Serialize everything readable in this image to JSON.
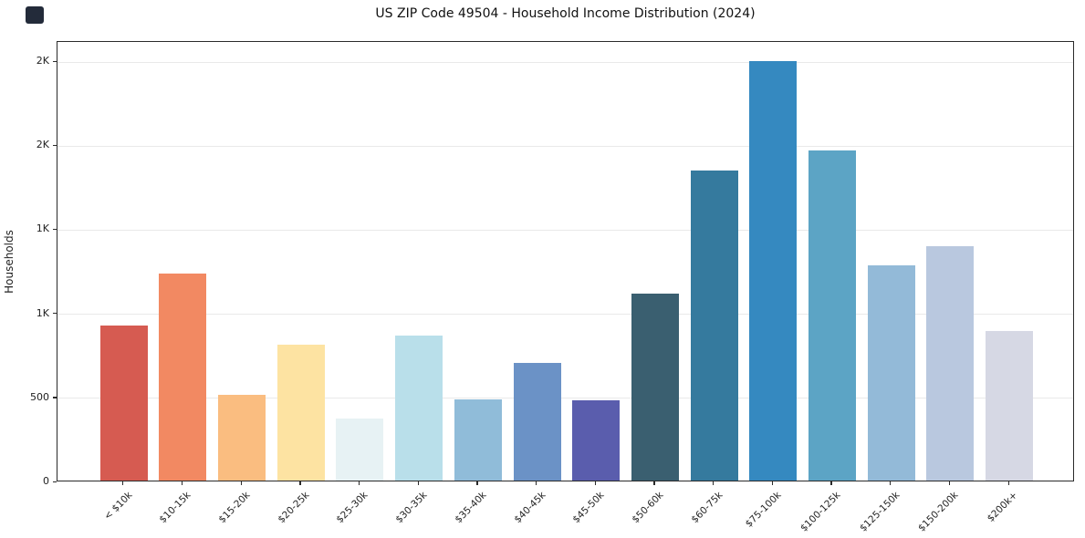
{
  "header": {
    "title": "US ZIP Code 49504 - Household Income Distribution (2024)"
  },
  "chart_data": {
    "type": "bar",
    "title": "US ZIP Code 49504 - Household Income Distribution (2024)",
    "xlabel": "",
    "ylabel": "Households",
    "ylim": [
      0,
      2620
    ],
    "grid": "horizontal-light",
    "legend": "none",
    "background": "#ffffff",
    "categories": [
      "< $10k",
      "$10-15k",
      "$15-20k",
      "$20-25k",
      "$25-30k",
      "$30-35k",
      "$35-40k",
      "$40-45k",
      "$45-50k",
      "$50-60k",
      "$60-75k",
      "$75-100k",
      "$100-125k",
      "$125-150k",
      "$150-200k",
      "$200k+"
    ],
    "values": [
      920,
      1230,
      510,
      810,
      370,
      860,
      485,
      700,
      480,
      1110,
      1845,
      2495,
      1965,
      1280,
      1395,
      890
    ],
    "bar_colors": [
      "#d65b51",
      "#f28962",
      "#fabd80",
      "#fde3a2",
      "#e7f2f4",
      "#b9dfea",
      "#90bcd9",
      "#6b92c6",
      "#5a5dad",
      "#3a5f70",
      "#357a9e",
      "#3589c0",
      "#5ca4c5",
      "#93bad8",
      "#b9c8df",
      "#d6d8e4"
    ],
    "yticks": [
      {
        "value": 0,
        "label": "0"
      },
      {
        "value": 500,
        "label": "500"
      },
      {
        "value": 1000,
        "label": "1K"
      },
      {
        "value": 1500,
        "label": "1K"
      },
      {
        "value": 2000,
        "label": "2K"
      },
      {
        "value": 2500,
        "label": "2K"
      }
    ]
  },
  "decor": {
    "corner_logo_color": "#232b3a"
  }
}
